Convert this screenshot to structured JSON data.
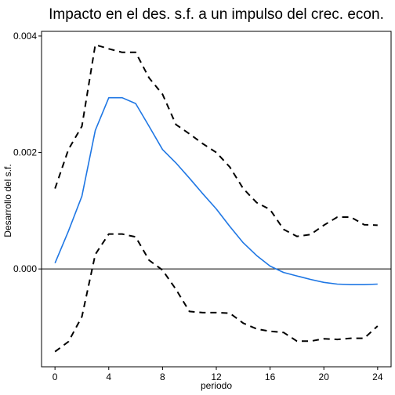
{
  "chart_data": {
    "type": "line",
    "title": "Impacto en el des. s.f. a un impulso del crec. econ.",
    "xlabel": "periodo",
    "ylabel": "Desarrollo del s.f.",
    "xlim": [
      -1,
      25
    ],
    "ylim": [
      -0.00168,
      0.00408
    ],
    "x_ticks": [
      0,
      4,
      8,
      12,
      16,
      20,
      24
    ],
    "x_tick_labels": [
      "0",
      "4",
      "8",
      "12",
      "16",
      "20",
      "24"
    ],
    "y_ticks": [
      0,
      0.002,
      0.004
    ],
    "y_tick_labels": [
      "0.000",
      "0.002",
      "0.004"
    ],
    "zero_line": 0,
    "grid": false,
    "colors": {
      "response": "#1f77e4",
      "bands": "#000000"
    },
    "x": [
      0,
      1,
      2,
      3,
      4,
      5,
      6,
      7,
      8,
      9,
      10,
      11,
      12,
      13,
      14,
      15,
      16,
      17,
      18,
      19,
      20,
      21,
      22,
      23,
      24
    ],
    "series": [
      {
        "role": "response",
        "style": "solid",
        "values": [
          0.0001,
          0.00065,
          0.00125,
          0.00238,
          0.00294,
          0.00294,
          0.00284,
          0.00245,
          0.00205,
          0.00182,
          0.00156,
          0.00129,
          0.00103,
          0.00073,
          0.00045,
          0.00023,
          5e-05,
          -6e-05,
          -0.00012,
          -0.00018,
          -0.00023,
          -0.00026,
          -0.00027,
          -0.00027,
          -0.00026
        ]
      },
      {
        "role": "upper",
        "style": "dashed",
        "values": [
          0.00138,
          0.00205,
          0.00245,
          0.00385,
          0.00378,
          0.00372,
          0.00372,
          0.00328,
          0.003,
          0.00248,
          0.00232,
          0.00215,
          0.002,
          0.00175,
          0.00138,
          0.00114,
          0.00102,
          0.00068,
          0.00056,
          0.00059,
          0.00075,
          0.00089,
          0.00089,
          0.00076,
          0.00075
        ]
      },
      {
        "role": "lower",
        "style": "dashed",
        "values": [
          -0.00142,
          -0.00125,
          -0.00082,
          0.00025,
          0.0006,
          0.0006,
          0.00055,
          0.00015,
          -2e-05,
          -0.00035,
          -0.00073,
          -0.00075,
          -0.00075,
          -0.00076,
          -0.00093,
          -0.00103,
          -0.00107,
          -0.00109,
          -0.00124,
          -0.00124,
          -0.0012,
          -0.00121,
          -0.00119,
          -0.00119,
          -0.00098
        ]
      }
    ]
  }
}
